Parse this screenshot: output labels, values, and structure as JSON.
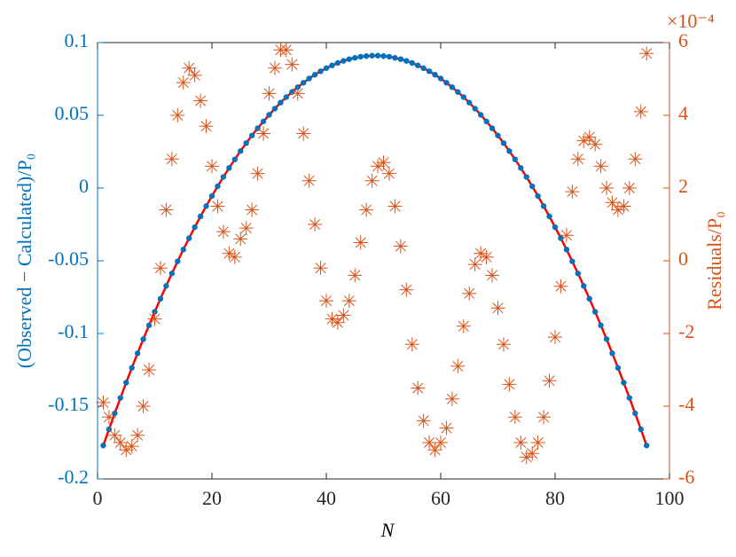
{
  "chart_data": {
    "type": "scatter",
    "xlabel": "N",
    "ylabel": "(Observed − Calculated)/P₀",
    "y2label": "Residuals/P₀",
    "y2_exponent_label": "×10⁻⁴",
    "xlim": [
      0,
      100
    ],
    "xticks": [
      0,
      20,
      40,
      60,
      80,
      100
    ],
    "ylim": [
      -0.2,
      0.1
    ],
    "yticks": [
      -0.2,
      -0.15,
      -0.1,
      -0.05,
      0,
      0.05,
      0.1
    ],
    "y2lim": [
      -6,
      6
    ],
    "y2ticks": [
      -6,
      -4,
      -2,
      0,
      2,
      4,
      6
    ],
    "ycolor": "#0072bd",
    "y2color": "#d95319",
    "x": [
      1,
      2,
      3,
      4,
      5,
      6,
      7,
      8,
      9,
      10,
      11,
      12,
      13,
      14,
      15,
      16,
      17,
      18,
      19,
      20,
      21,
      22,
      23,
      24,
      25,
      26,
      27,
      28,
      29,
      30,
      31,
      32,
      33,
      34,
      35,
      36,
      37,
      38,
      39,
      40,
      41,
      42,
      43,
      44,
      45,
      46,
      47,
      48,
      49,
      50,
      51,
      52,
      53,
      54,
      55,
      56,
      57,
      58,
      59,
      60,
      61,
      62,
      63,
      64,
      65,
      66,
      67,
      68,
      69,
      70,
      71,
      72,
      73,
      74,
      75,
      76,
      77,
      78,
      79,
      80,
      81,
      82,
      83,
      84,
      85,
      86,
      87,
      88,
      89,
      90,
      91,
      92,
      93,
      94,
      95,
      96
    ],
    "series": [
      {
        "color": "#0072bd",
        "line_color": "#ff0000",
        "marker": "dot",
        "values": [
          -0.177,
          -0.1659,
          -0.1549,
          -0.1443,
          -0.1338,
          -0.1236,
          -0.1136,
          -0.1039,
          -0.0944,
          -0.0851,
          -0.0761,
          -0.0673,
          -0.0587,
          -0.0504,
          -0.0423,
          -0.0345,
          -0.0269,
          -0.0195,
          -0.0124,
          -0.0055,
          0.0012,
          0.0076,
          0.0138,
          0.0197,
          0.0254,
          0.0309,
          0.0361,
          0.0411,
          0.0458,
          0.0503,
          0.0546,
          0.0587,
          0.0625,
          0.066,
          0.0693,
          0.0724,
          0.0753,
          0.0779,
          0.0803,
          0.0824,
          0.0843,
          0.086,
          0.0874,
          0.0886,
          0.0895,
          0.0903,
          0.0907,
          0.091,
          0.091,
          0.0907,
          0.0903,
          0.0895,
          0.0886,
          0.0874,
          0.086,
          0.0843,
          0.0824,
          0.0803,
          0.0779,
          0.0753,
          0.0724,
          0.0693,
          0.066,
          0.0625,
          0.0587,
          0.0546,
          0.0503,
          0.0458,
          0.0411,
          0.0361,
          0.0309,
          0.0254,
          0.0197,
          0.0138,
          0.0076,
          0.0012,
          -0.0055,
          -0.0124,
          -0.0195,
          -0.0269,
          -0.0345,
          -0.0423,
          -0.0504,
          -0.0587,
          -0.0673,
          -0.0761,
          -0.0851,
          -0.0944,
          -0.1039,
          -0.1136,
          -0.1236,
          -0.1338,
          -0.1443,
          -0.1549,
          -0.1659,
          -0.177
        ]
      },
      {
        "color": "#d95319",
        "marker": "asterisk",
        "axis": "y2",
        "values": [
          -3.9,
          -4.3,
          -4.8,
          -5.0,
          -5.2,
          -5.1,
          -4.8,
          -4.0,
          -3.0,
          -1.6,
          -0.2,
          1.4,
          2.8,
          4.0,
          4.9,
          5.3,
          5.1,
          4.4,
          3.7,
          2.6,
          1.5,
          0.8,
          0.2,
          0.1,
          0.6,
          0.9,
          1.4,
          2.4,
          3.5,
          4.6,
          5.3,
          5.8,
          5.8,
          5.4,
          4.6,
          3.5,
          2.2,
          1.0,
          -0.2,
          -1.1,
          -1.6,
          -1.7,
          -1.5,
          -1.1,
          -0.4,
          0.5,
          1.4,
          2.2,
          2.6,
          2.7,
          2.4,
          1.5,
          0.4,
          -0.8,
          -2.3,
          -3.5,
          -4.4,
          -5.0,
          -5.2,
          -5.0,
          -4.6,
          -3.8,
          -2.9,
          -1.8,
          -0.9,
          -0.1,
          0.2,
          0.1,
          -0.4,
          -1.3,
          -2.3,
          -3.4,
          -4.3,
          -5.0,
          -5.4,
          -5.3,
          -5.0,
          -4.3,
          -3.3,
          -2.1,
          -0.7,
          0.7,
          1.9,
          2.8,
          3.3,
          3.4,
          3.2,
          2.6,
          2.0,
          1.6,
          1.4,
          1.5,
          2.0,
          2.8,
          4.1,
          5.7
        ]
      }
    ]
  }
}
